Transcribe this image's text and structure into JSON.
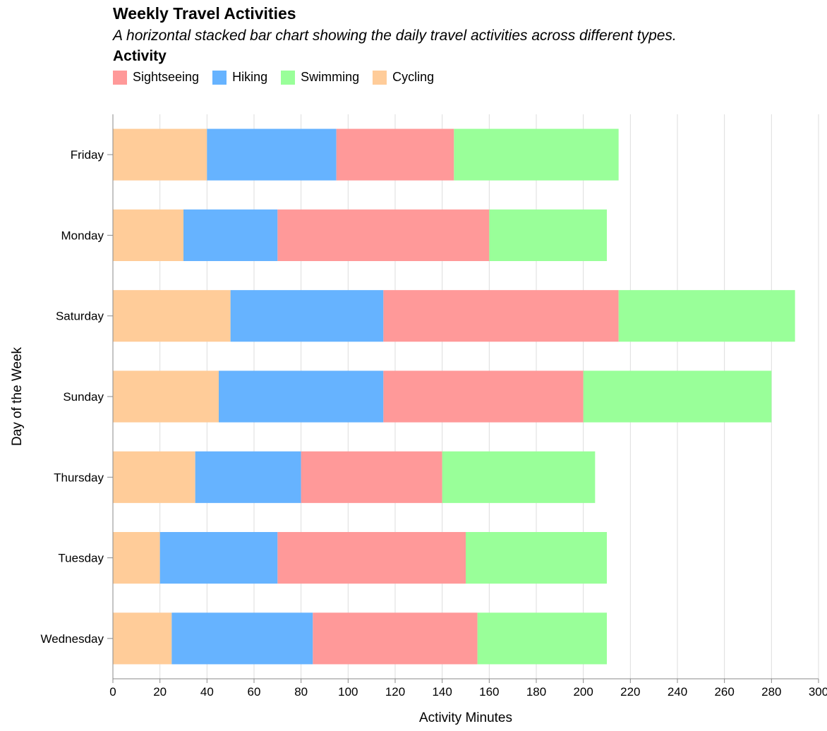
{
  "chart_data": {
    "type": "bar",
    "orientation": "horizontal",
    "stacked": true,
    "title": "Weekly Travel Activities",
    "subtitle": "A horizontal stacked bar chart showing the daily travel activities across different types.",
    "xlabel": "Activity Minutes",
    "ylabel": "Day of the Week",
    "xlim": [
      0,
      300
    ],
    "x_ticks": [
      0,
      20,
      40,
      60,
      80,
      100,
      120,
      140,
      160,
      180,
      200,
      220,
      240,
      260,
      280,
      300
    ],
    "grid": true,
    "legend": {
      "title": "Activity",
      "placement": "top-left",
      "entries": [
        "Sightseeing",
        "Hiking",
        "Swimming",
        "Cycling"
      ]
    },
    "categories": [
      "Friday",
      "Monday",
      "Saturday",
      "Sunday",
      "Thursday",
      "Tuesday",
      "Wednesday"
    ],
    "stack_order": [
      "Cycling",
      "Hiking",
      "Sightseeing",
      "Swimming"
    ],
    "series": [
      {
        "name": "Sightseeing",
        "color": "#ff9999",
        "values": [
          50,
          90,
          100,
          85,
          60,
          80,
          70
        ]
      },
      {
        "name": "Hiking",
        "color": "#66b3ff",
        "values": [
          55,
          40,
          65,
          70,
          45,
          50,
          60
        ]
      },
      {
        "name": "Swimming",
        "color": "#99ff99",
        "values": [
          70,
          50,
          75,
          80,
          65,
          60,
          55
        ]
      },
      {
        "name": "Cycling",
        "color": "#ffcc99",
        "values": [
          40,
          30,
          50,
          45,
          35,
          20,
          25
        ]
      }
    ]
  }
}
